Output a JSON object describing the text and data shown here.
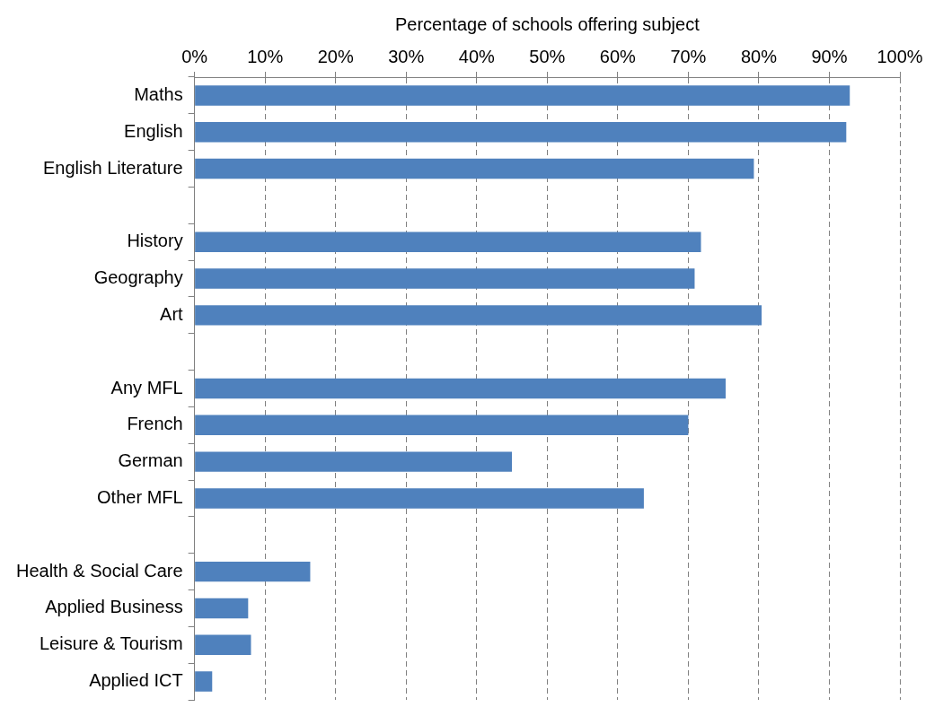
{
  "chart_data": {
    "type": "bar",
    "orientation": "horizontal",
    "xlabel": "Percentage of schools offering subject",
    "categories": [
      "Maths",
      "English",
      "English Literature",
      null,
      "History",
      "Geography",
      "Art",
      null,
      "Any MFL",
      "French",
      "German",
      "Other MFL",
      null,
      "Health & Social Care",
      "Applied Business",
      "Leisure & Tourism",
      "Applied ICT"
    ],
    "values": [
      92.9,
      92.4,
      79.3,
      null,
      71.8,
      70.9,
      80.4,
      null,
      75.3,
      70.0,
      45.0,
      63.7,
      null,
      16.4,
      7.6,
      8.0,
      2.5
    ],
    "color": "#4f81bd",
    "xlim": [
      0,
      100
    ],
    "xticks": [
      {
        "value": 0,
        "label": "0%"
      },
      {
        "value": 10,
        "label": "10%"
      },
      {
        "value": 20,
        "label": "20%"
      },
      {
        "value": 30,
        "label": "30%"
      },
      {
        "value": 40,
        "label": "40%"
      },
      {
        "value": 50,
        "label": "50%"
      },
      {
        "value": 60,
        "label": "60%"
      },
      {
        "value": 70,
        "label": "70%"
      },
      {
        "value": 80,
        "label": "80%"
      },
      {
        "value": 90,
        "label": "90%"
      },
      {
        "value": 100,
        "label": "100%"
      }
    ],
    "grid": "x",
    "line_style": "dashed",
    "legend": false
  }
}
